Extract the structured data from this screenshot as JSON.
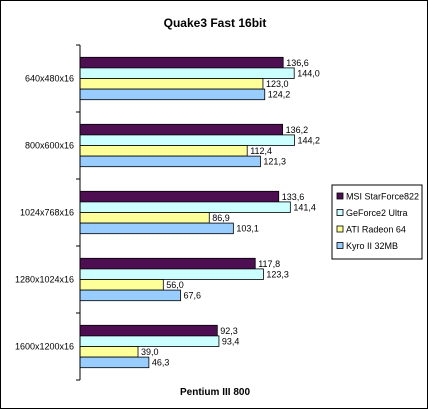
{
  "chart_data": {
    "type": "bar",
    "orientation": "horizontal",
    "title": "Quake3 Fast 16bit",
    "xlabel": "Pentium III 800",
    "ylabel": "",
    "categories": [
      "640x480x16",
      "800x600x16",
      "1024x768x16",
      "1280x1024x16",
      "1600x1200x16"
    ],
    "series": [
      {
        "name": "MSI StarForce822",
        "color": "#4d0f52",
        "values": [
          136.6,
          136.2,
          133.6,
          117.8,
          92.3
        ],
        "labels": [
          "136,6",
          "136,2",
          "133,6",
          "117,8",
          "92,3"
        ]
      },
      {
        "name": "GeForce2 Ultra",
        "color": "#ccffff",
        "values": [
          144.0,
          144.2,
          141.4,
          123.3,
          93.4
        ],
        "labels": [
          "144,0",
          "144,2",
          "141,4",
          "123,3",
          "93,4"
        ]
      },
      {
        "name": "ATI Radeon 64",
        "color": "#ffff99",
        "values": [
          123.0,
          112.4,
          86.9,
          56.0,
          39.0
        ],
        "labels": [
          "123,0",
          "112,4",
          "86,9",
          "56,0",
          "39,0"
        ]
      },
      {
        "name": "Kyro II 32MB",
        "color": "#99ccff",
        "values": [
          124.2,
          121.3,
          103.1,
          67.6,
          46.3
        ],
        "labels": [
          "124,2",
          "121,3",
          "103,1",
          "67,6",
          "46,3"
        ]
      }
    ],
    "xlim": [
      0,
      160
    ],
    "grid": false,
    "legend_position": "right"
  }
}
